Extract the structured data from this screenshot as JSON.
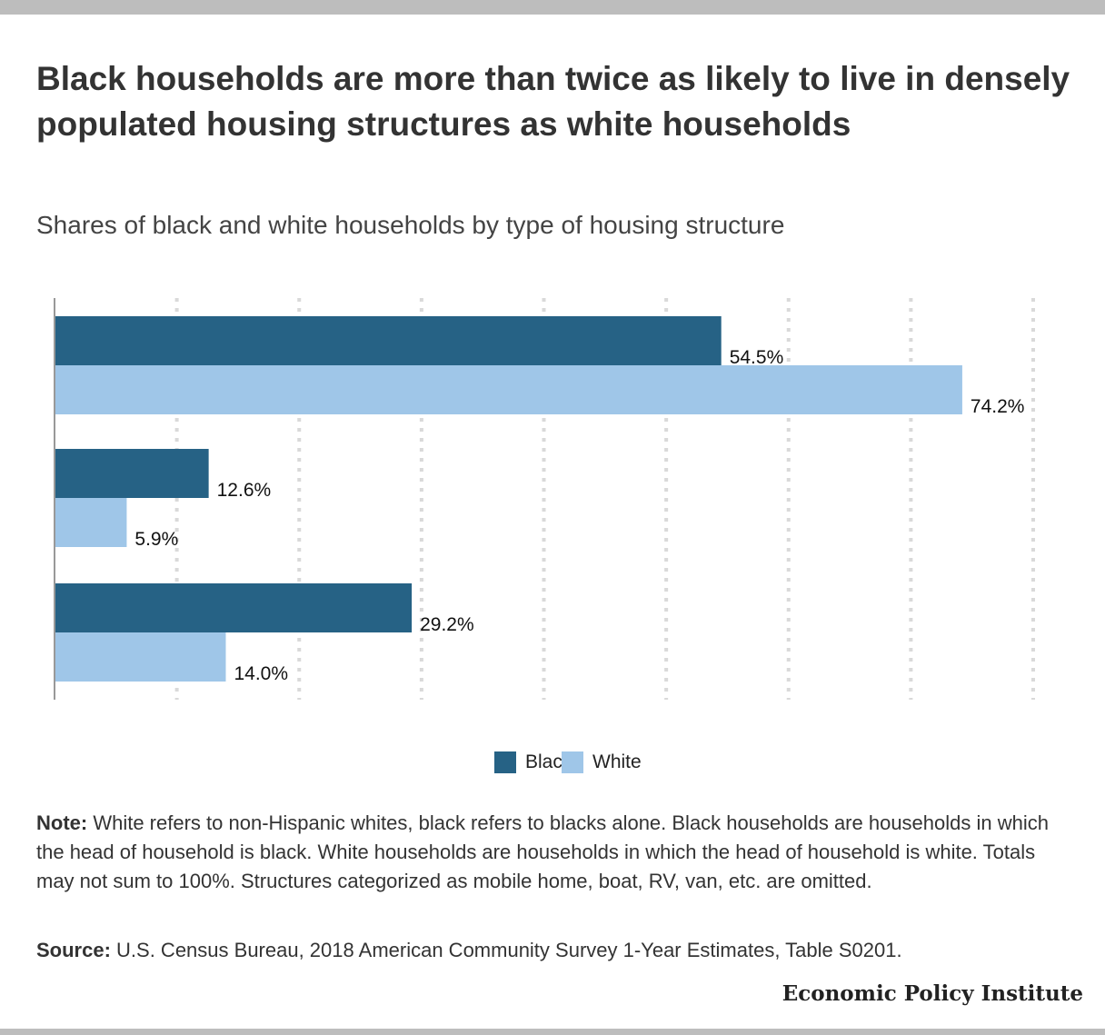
{
  "title": "Black households are more than twice as likely to live in densely populated housing structures as white households",
  "subtitle": "Shares of black and white households by type of housing structure",
  "chart_data": {
    "type": "bar",
    "orientation": "horizontal",
    "categories": [
      "",
      "",
      ""
    ],
    "series": [
      {
        "name": "Black",
        "color": "#266285",
        "values": [
          54.5,
          12.6,
          29.2
        ],
        "labels": [
          "54.5%",
          "12.6%",
          "29.2%"
        ]
      },
      {
        "name": "White",
        "color": "#9fc6e8",
        "values": [
          74.2,
          5.9,
          14.0
        ],
        "labels": [
          "74.2%",
          "5.9%",
          "14.0%"
        ]
      }
    ],
    "xlim": [
      0,
      80
    ],
    "grid": true,
    "legend_position": "bottom-center"
  },
  "legend": {
    "black_label": "Black",
    "white_label": "White"
  },
  "note": {
    "label": "Note:",
    "text": " White refers to non-Hispanic whites, black refers to blacks alone. Black households are households in which the head of household is black. White households are households in which the head of household is white. Totals may not sum to 100%. Structures categorized as mobile home, boat, RV, van, etc. are omitted."
  },
  "source": {
    "label": "Source:",
    "text": " U.S. Census Bureau, 2018 American Community Survey 1-Year Estimates, Table S0201."
  },
  "brand": "Economic Policy Institute"
}
